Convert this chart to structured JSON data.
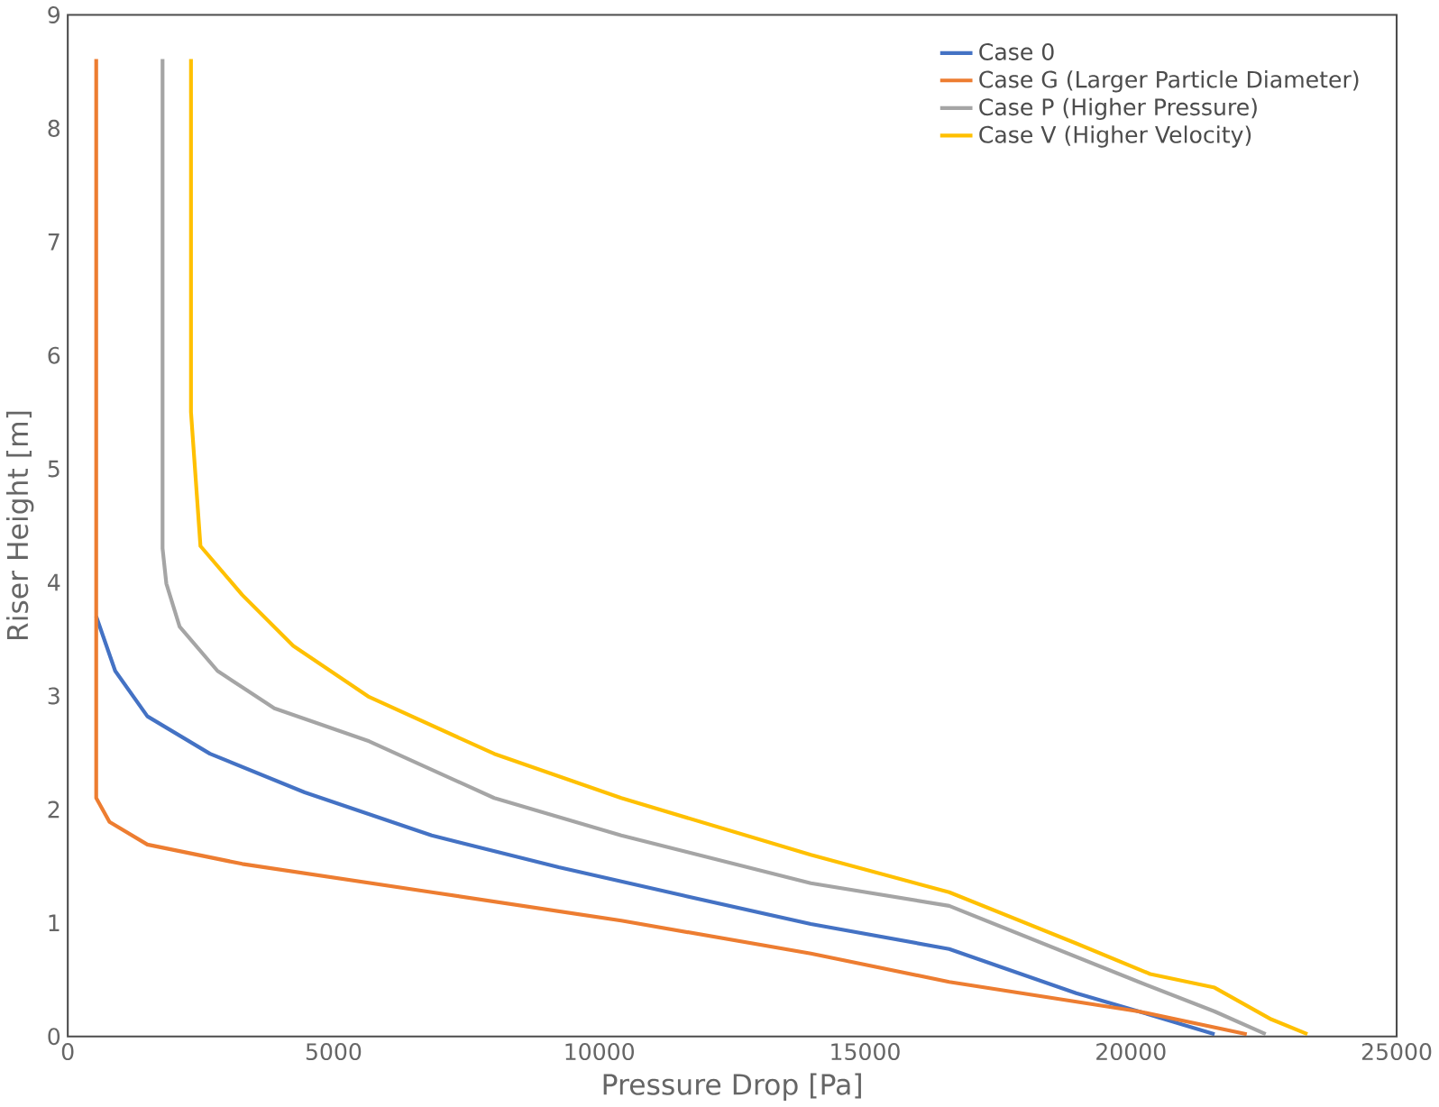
{
  "chart_data": {
    "type": "line",
    "xlabel": "Pressure Drop [Pa]",
    "ylabel": "Riser Height [m]",
    "xlim": [
      0,
      25000
    ],
    "ylim": [
      0,
      9
    ],
    "xticks": [
      0,
      5000,
      10000,
      15000,
      20000,
      25000
    ],
    "yticks": [
      0,
      1,
      2,
      3,
      4,
      5,
      6,
      7,
      8,
      9
    ],
    "grid": false,
    "legend": "top right",
    "marker": "none",
    "line_style": "solid",
    "series": [
      {
        "name": "Case 0",
        "color": "#4472c4",
        "x": [
          21575,
          20149,
          18971,
          16582,
          13979,
          11590,
          9236,
          6847,
          4458,
          2675,
          1498,
          892,
          535
        ],
        "values": [
          0.02,
          0.22,
          0.38,
          0.77,
          0.99,
          1.24,
          1.49,
          1.77,
          2.15,
          2.49,
          2.82,
          3.22,
          3.7
        ]
      },
      {
        "name": "Case G (Larger Particle Diameter)",
        "color": "#ed7d31",
        "x": [
          22180,
          20149,
          16582,
          13979,
          10413,
          6847,
          3281,
          1498,
          785,
          535,
          535
        ],
        "values": [
          0.02,
          0.22,
          0.48,
          0.73,
          1.02,
          1.27,
          1.52,
          1.69,
          1.89,
          2.1,
          8.61
        ]
      },
      {
        "name": "Case P (Higher Pressure)",
        "color": "#a5a5a5",
        "x": [
          22536,
          21575,
          20149,
          16582,
          13979,
          10413,
          8023,
          5670,
          3887,
          2817,
          2104,
          1854,
          1783,
          1783
        ],
        "values": [
          0.02,
          0.22,
          0.48,
          1.15,
          1.35,
          1.77,
          2.1,
          2.6,
          2.89,
          3.22,
          3.61,
          3.99,
          4.3,
          8.61
        ]
      },
      {
        "name": "Case V (Higher Velocity)",
        "color": "#ffc000",
        "x": [
          23321,
          22643,
          21575,
          20363,
          18971,
          16582,
          13979,
          10413,
          8023,
          5670,
          4243,
          3281,
          2496,
          2318,
          2318
        ],
        "values": [
          0.02,
          0.15,
          0.43,
          0.55,
          0.82,
          1.27,
          1.6,
          2.1,
          2.49,
          2.99,
          3.44,
          3.89,
          4.32,
          5.5,
          8.61
        ]
      }
    ]
  }
}
